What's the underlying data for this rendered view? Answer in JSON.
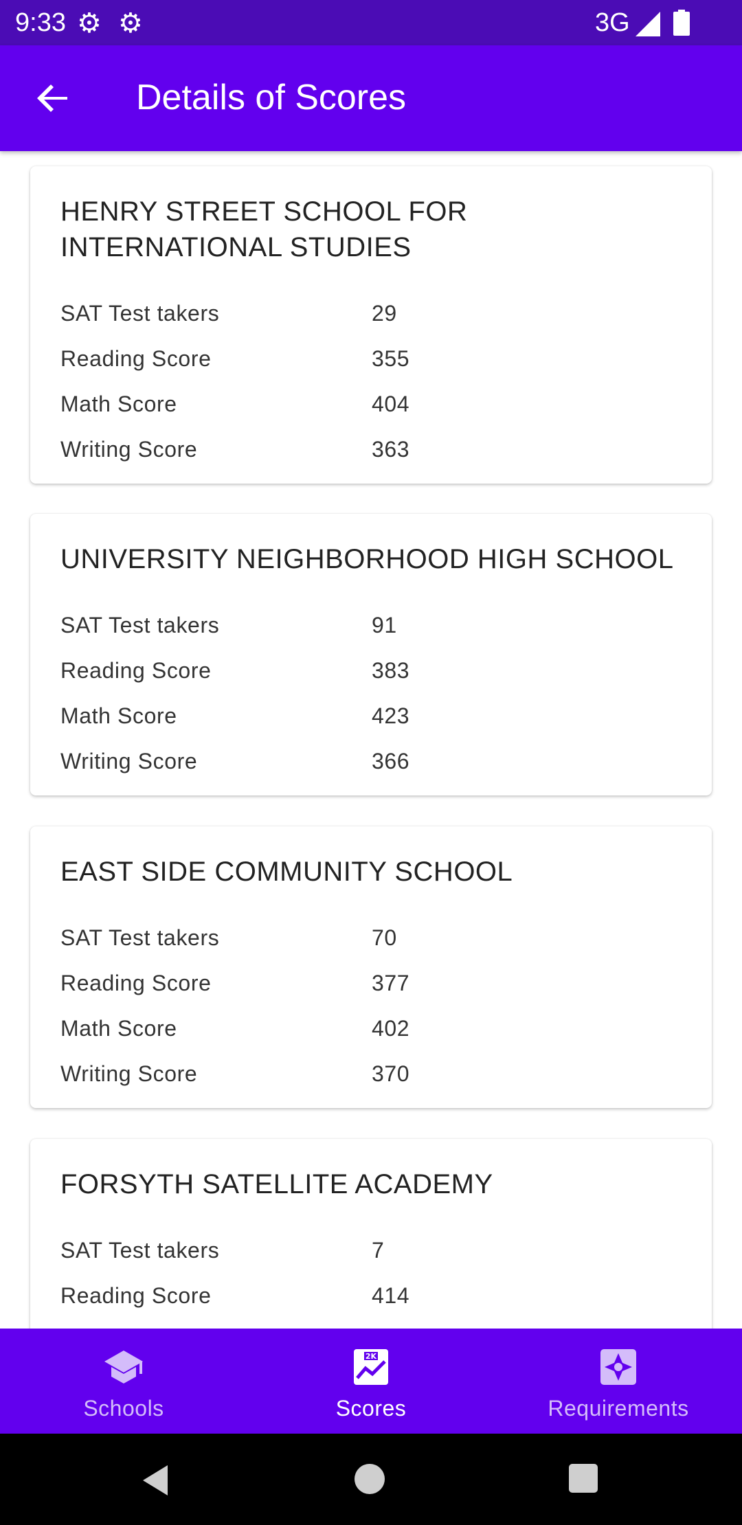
{
  "status_bar": {
    "time": "9:33",
    "network": "3G",
    "icons": [
      "settings-gear-icon",
      "settings-gear-outline-icon",
      "signal-icon",
      "battery-icon"
    ]
  },
  "app_bar": {
    "title": "Details of Scores",
    "back_icon": "arrow-back-icon",
    "background": "#6200ee"
  },
  "scores": [
    {
      "school": "HENRY STREET SCHOOL FOR INTERNATIONAL STUDIES",
      "rows": [
        {
          "label": "SAT Test takers",
          "value": "29"
        },
        {
          "label": "Reading Score",
          "value": "355"
        },
        {
          "label": "Math Score",
          "value": "404"
        },
        {
          "label": "Writing Score",
          "value": "363"
        }
      ]
    },
    {
      "school": "UNIVERSITY NEIGHBORHOOD HIGH SCHOOL",
      "rows": [
        {
          "label": "SAT Test takers",
          "value": "91"
        },
        {
          "label": "Reading Score",
          "value": "383"
        },
        {
          "label": "Math Score",
          "value": "423"
        },
        {
          "label": "Writing Score",
          "value": "366"
        }
      ]
    },
    {
      "school": "EAST SIDE COMMUNITY SCHOOL",
      "rows": [
        {
          "label": "SAT Test takers",
          "value": "70"
        },
        {
          "label": "Reading Score",
          "value": "377"
        },
        {
          "label": "Math Score",
          "value": "402"
        },
        {
          "label": "Writing Score",
          "value": "370"
        }
      ]
    },
    {
      "school": "FORSYTH SATELLITE ACADEMY",
      "rows": [
        {
          "label": "SAT Test takers",
          "value": "7"
        },
        {
          "label": "Reading Score",
          "value": "414"
        }
      ]
    }
  ],
  "bottom_nav": {
    "items": [
      {
        "label": "Schools",
        "icon": "school-icon",
        "selected": false
      },
      {
        "label": "Scores",
        "icon": "scores-chart-icon",
        "selected": true
      },
      {
        "label": "Requirements",
        "icon": "requirements-icon",
        "selected": false
      }
    ],
    "active_color": "#ffffff",
    "inactive_color": "#d4bcfa"
  },
  "system_nav": {
    "icons": [
      "nav-back-icon",
      "nav-home-icon",
      "nav-recents-icon"
    ]
  }
}
